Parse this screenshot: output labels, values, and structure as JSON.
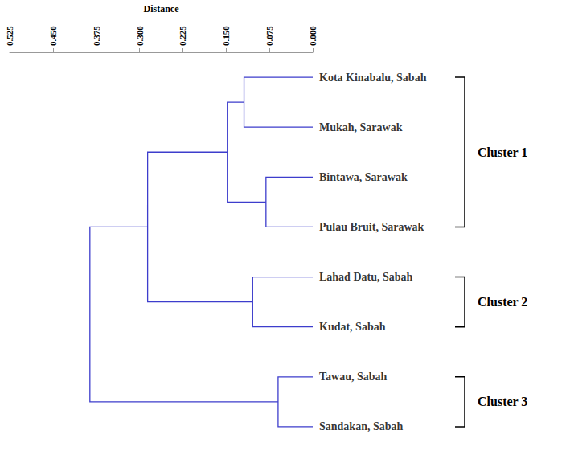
{
  "chart_data": {
    "type": "dendrogram",
    "x_label": "Distance",
    "xlim": [
      0.525,
      0.0
    ],
    "xticks": [
      0.525,
      {
        "value": 0.45,
        "label": "0.450"
      },
      0.375,
      {
        "value": 0.3,
        "label": "0.300"
      },
      0.225,
      {
        "value": 0.15,
        "label": "0.150"
      },
      0.075,
      {
        "value": 0.0,
        "label": "0.000"
      }
    ],
    "color": "#3d3dcc",
    "tree": {
      "height": 0.386,
      "children": [
        {
          "height": 0.286,
          "children": [
            {
              "height": 0.148,
              "children": [
                {
                  "height": 0.119,
                  "children": [
                    "Kota Kinabalu, Sabah",
                    "Mukah, Sarawak"
                  ]
                },
                {
                  "height": 0.081,
                  "children": [
                    "Bintawa, Sarawak",
                    "Pulau Bruit, Sarawak"
                  ]
                }
              ]
            },
            {
              "height": 0.104,
              "children": [
                "Lahad Datu, Sabah",
                "Kudat, Sabah"
              ]
            }
          ]
        },
        {
          "height": 0.06,
          "children": [
            "Tawau, Sabah",
            "Sandakan, Sabah"
          ]
        }
      ]
    },
    "clusters": [
      {
        "label": "Cluster 1",
        "members": 4
      },
      {
        "label": "Cluster 2",
        "members": 2
      },
      {
        "label": "Cluster 3",
        "members": 2
      }
    ]
  }
}
